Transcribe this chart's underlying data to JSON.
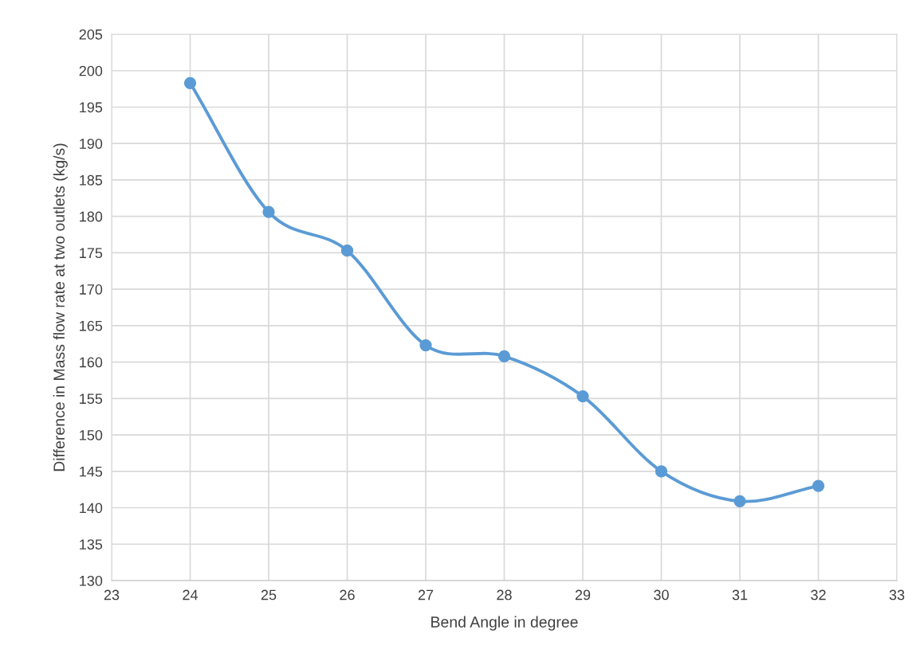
{
  "chart_data": {
    "type": "line",
    "xlabel": "Bend Angle in degree",
    "ylabel": "Difference in Mass flow rate at two outlets (kg/s)",
    "x": [
      24,
      25,
      26,
      27,
      28,
      29,
      30,
      31,
      32
    ],
    "series": [
      {
        "color": "#5b9bd5",
        "values": [
          198.3,
          180.6,
          175.3,
          162.3,
          160.8,
          155.3,
          145.0,
          140.9,
          143.0
        ]
      }
    ],
    "xlim": [
      23,
      33
    ],
    "xticks": [
      23,
      24,
      25,
      26,
      27,
      28,
      29,
      30,
      31,
      32,
      33
    ],
    "ylim": [
      130,
      205
    ],
    "yticks": [
      130,
      135,
      140,
      145,
      150,
      155,
      160,
      165,
      170,
      175,
      180,
      185,
      190,
      195,
      200,
      205
    ],
    "grid": true,
    "marker": "circle",
    "line_style": "solid"
  }
}
